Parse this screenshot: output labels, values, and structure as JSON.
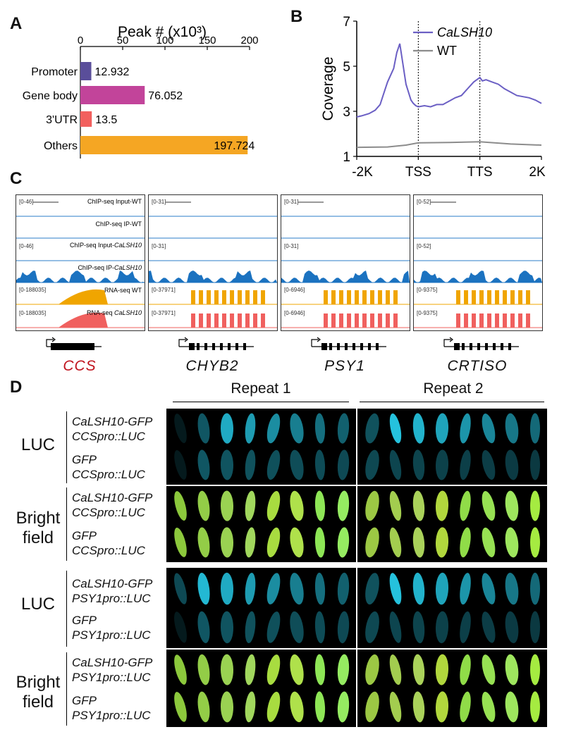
{
  "panels": {
    "A": "A",
    "B": "B",
    "C": "C",
    "D": "D"
  },
  "panel_a": {
    "title": "Peak # (x10³)",
    "chart_data": {
      "type": "bar",
      "orientation": "horizontal",
      "categories": [
        "Promoter",
        "Gene body",
        "3'UTR",
        "Others"
      ],
      "values": [
        12.932,
        76.052,
        13.5,
        197.724
      ],
      "value_labels": [
        "12.932",
        "76.052",
        "13.5",
        "197.724"
      ],
      "xlim": [
        0,
        200
      ],
      "xticks": [
        "0",
        "50",
        "100",
        "150",
        "200"
      ],
      "colors": [
        "#5a4e9a",
        "#c2449a",
        "#f2605e",
        "#f5a623"
      ]
    }
  },
  "panel_b": {
    "chart_data": {
      "type": "line",
      "ylabel": "Coverage",
      "ylim": [
        1,
        7
      ],
      "yticks": [
        "1",
        "3",
        "5",
        "7"
      ],
      "xticks": [
        "-2K",
        "TSS",
        "TTS",
        "2K"
      ],
      "series": [
        {
          "name": "CaLSH10",
          "color": "#6b5fc4",
          "x": [
            0,
            0.08,
            0.2,
            0.3,
            0.38,
            0.44,
            0.5,
            0.6,
            0.65,
            0.7,
            0.8,
            0.88,
            0.92,
            0.96,
            1.0,
            1.1,
            1.2,
            1.3,
            1.4,
            1.5,
            1.6,
            1.7,
            1.8,
            1.9,
            2.0,
            2.04,
            2.1,
            2.2,
            2.3,
            2.4,
            2.5,
            2.6,
            2.7,
            2.8,
            2.9,
            3.0
          ],
          "y": [
            2.75,
            2.8,
            2.9,
            3.05,
            3.3,
            3.8,
            4.3,
            4.9,
            5.6,
            6.0,
            4.2,
            3.5,
            3.35,
            3.25,
            3.2,
            3.25,
            3.2,
            3.3,
            3.3,
            3.45,
            3.6,
            3.7,
            4.0,
            4.3,
            4.5,
            4.35,
            4.4,
            4.3,
            4.2,
            4.0,
            3.85,
            3.7,
            3.65,
            3.6,
            3.5,
            3.35
          ]
        },
        {
          "name": "WT",
          "color": "#8c8c8c",
          "x": [
            0,
            0.5,
            0.8,
            1.0,
            1.5,
            2.0,
            2.5,
            3.0
          ],
          "y": [
            1.4,
            1.42,
            1.5,
            1.6,
            1.62,
            1.65,
            1.55,
            1.5
          ]
        }
      ],
      "vlines": [
        "TSS",
        "TTS"
      ]
    }
  },
  "panel_c": {
    "panels": [
      {
        "gene": "CCS",
        "gene_color": "#c0151f",
        "range_input": "[0-46]",
        "range_input2": "[0-46]",
        "range_rna1": "[0-188035]",
        "range_rna2": "[0-188035]",
        "labels": [
          "ChIP-seq  Input-WT",
          "ChIP-seq  IP-WT",
          "ChIP-seq  Input-",
          "ChIP-seq  IP-",
          "RNA-seq  WT",
          "RNA-seq "
        ],
        "label_suffix": "CaLSH10"
      },
      {
        "gene": "CHYB2",
        "gene_color": "#111111",
        "range_input": "[0-31]",
        "range_input2": "[0-31]",
        "range_rna1": "[0-37971]",
        "range_rna2": "[0-37971]"
      },
      {
        "gene": "PSY1",
        "gene_color": "#111111",
        "range_input": "[0-31]",
        "range_input2": "[0-31]",
        "range_rna1": "[0-6946]",
        "range_rna2": "[0-6946]"
      },
      {
        "gene": "CRTISO",
        "gene_color": "#111111",
        "range_input": "[0-52]",
        "range_input2": "[0-52]",
        "range_rna1": "[0-9375]",
        "range_rna2": "[0-9375]"
      }
    ]
  },
  "panel_d": {
    "repeats": [
      "Repeat 1",
      "Repeat 2"
    ],
    "side_labels": [
      "LUC",
      "Bright\nfield",
      "LUC",
      "Bright\nfield"
    ],
    "rows": [
      {
        "line1": "CaLSH10-GFP",
        "line2": "CCSpro::LUC"
      },
      {
        "line1": "GFP",
        "line2": "CCSpro::LUC"
      },
      {
        "line1": "CaLSH10-GFP",
        "line2": "CCSpro::LUC"
      },
      {
        "line1": "GFP",
        "line2": "CCSpro::LUC"
      },
      {
        "line1": "CaLSH10-GFP",
        "line2": "PSY1pro::LUC"
      },
      {
        "line1": "GFP",
        "line2": "PSY1pro::LUC"
      },
      {
        "line1": "CaLSH10-GFP",
        "line2": "PSY1pro::LUC"
      },
      {
        "line1": "GFP",
        "line2": "PSY1pro::LUC"
      }
    ]
  }
}
